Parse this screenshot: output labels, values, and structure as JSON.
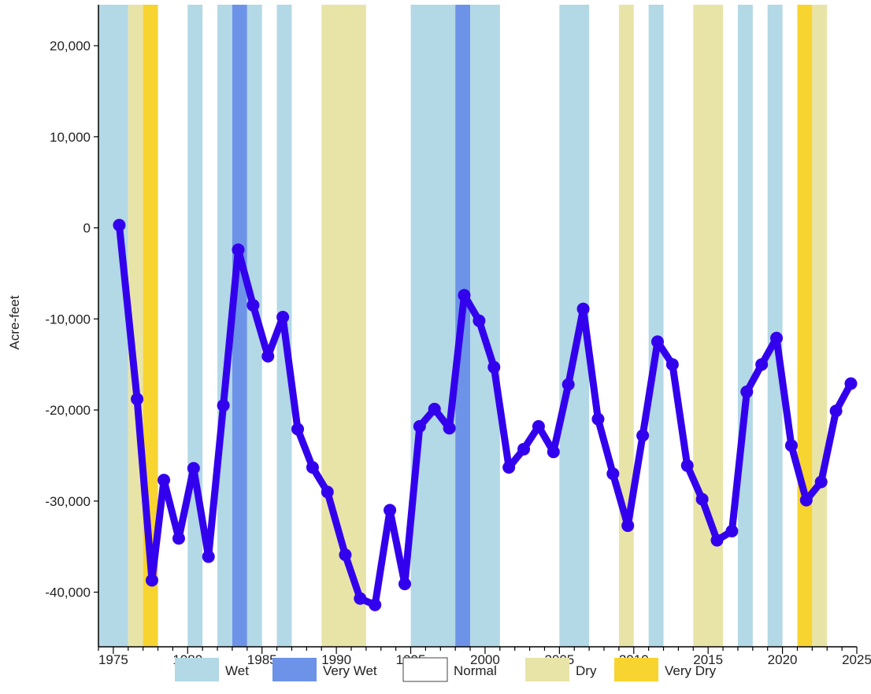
{
  "chart_data": {
    "type": "line",
    "title": "",
    "xlabel": "",
    "ylabel": "Acre-feet",
    "xlim": [
      1974,
      2025
    ],
    "ylim": [
      -46000,
      24500
    ],
    "x_ticks": [
      1975,
      1980,
      1985,
      1990,
      1995,
      2000,
      2005,
      2010,
      2015,
      2020,
      2025
    ],
    "y_ticks": [
      20000,
      10000,
      0,
      -10000,
      -20000,
      -30000,
      -40000
    ],
    "y_tick_labels": [
      "20,000",
      "10,000",
      "0",
      "-10,000",
      "-20,000",
      "-30,000",
      "-40,000"
    ],
    "grid": false,
    "legend_position": "bottom",
    "categories": [
      {
        "key": "wet",
        "label": "Wet",
        "color": "#b3d8e6"
      },
      {
        "key": "very_wet",
        "label": "Very Wet",
        "color": "#6d93e8"
      },
      {
        "key": "normal",
        "label": "Normal",
        "color": "#ffffff"
      },
      {
        "key": "dry",
        "label": "Dry",
        "color": "#e8e4a8"
      },
      {
        "key": "very_dry",
        "label": "Very Dry",
        "color": "#f7d430"
      }
    ],
    "year_types": [
      {
        "start": 1974,
        "end": 1976,
        "type": "wet"
      },
      {
        "start": 1976,
        "end": 1977,
        "type": "dry"
      },
      {
        "start": 1977,
        "end": 1978,
        "type": "very_dry"
      },
      {
        "start": 1980,
        "end": 1981,
        "type": "wet"
      },
      {
        "start": 1982,
        "end": 1983,
        "type": "wet"
      },
      {
        "start": 1983,
        "end": 1984,
        "type": "very_wet"
      },
      {
        "start": 1984,
        "end": 1985,
        "type": "wet"
      },
      {
        "start": 1986,
        "end": 1987,
        "type": "wet"
      },
      {
        "start": 1989,
        "end": 1992,
        "type": "dry"
      },
      {
        "start": 1995,
        "end": 1998,
        "type": "wet"
      },
      {
        "start": 1998,
        "end": 1999,
        "type": "very_wet"
      },
      {
        "start": 1999,
        "end": 2001,
        "type": "wet"
      },
      {
        "start": 2005,
        "end": 2007,
        "type": "wet"
      },
      {
        "start": 2009,
        "end": 2010,
        "type": "dry"
      },
      {
        "start": 2011,
        "end": 2012,
        "type": "wet"
      },
      {
        "start": 2014,
        "end": 2016,
        "type": "dry"
      },
      {
        "start": 2017,
        "end": 2018,
        "type": "wet"
      },
      {
        "start": 2019,
        "end": 2020,
        "type": "wet"
      },
      {
        "start": 2021,
        "end": 2022,
        "type": "very_dry"
      },
      {
        "start": 2022,
        "end": 2023,
        "type": "dry"
      }
    ],
    "series": [
      {
        "color": "#3300ee",
        "x": [
          1975.4,
          1976.6,
          1977.6,
          1978.4,
          1979.4,
          1980.4,
          1981.4,
          1982.4,
          1983.4,
          1984.4,
          1985.4,
          1986.4,
          1987.4,
          1988.4,
          1989.4,
          1990.6,
          1991.6,
          1992.6,
          1993.6,
          1994.6,
          1995.6,
          1996.6,
          1997.6,
          1998.6,
          1999.6,
          2000.6,
          2001.6,
          2002.6,
          2003.6,
          2004.6,
          2005.6,
          2006.6,
          2007.6,
          2008.6,
          2009.6,
          2010.6,
          2011.6,
          2012.6,
          2013.6,
          2014.6,
          2015.6,
          2016.6,
          2017.6,
          2018.6,
          2019.6,
          2020.6,
          2021.6,
          2022.6,
          2023.6,
          2024.6
        ],
        "y": [
          300,
          -18800,
          -38700,
          -27700,
          -34100,
          -26400,
          -36100,
          -19500,
          -2400,
          -8500,
          -14100,
          -9800,
          -22100,
          -26300,
          -29000,
          -35900,
          -40700,
          -41400,
          -31000,
          -39100,
          -21800,
          -19900,
          -22000,
          -7400,
          -10200,
          -15300,
          -26300,
          -24300,
          -21800,
          -24600,
          -17200,
          -8900,
          -21000,
          -27000,
          -32700,
          -22800,
          -12500,
          -15000,
          -26100,
          -29800,
          -34300,
          -33300,
          -18000,
          -15000,
          -12100,
          -23900,
          -29900,
          -27900,
          -20100,
          -17100
        ]
      }
    ]
  }
}
